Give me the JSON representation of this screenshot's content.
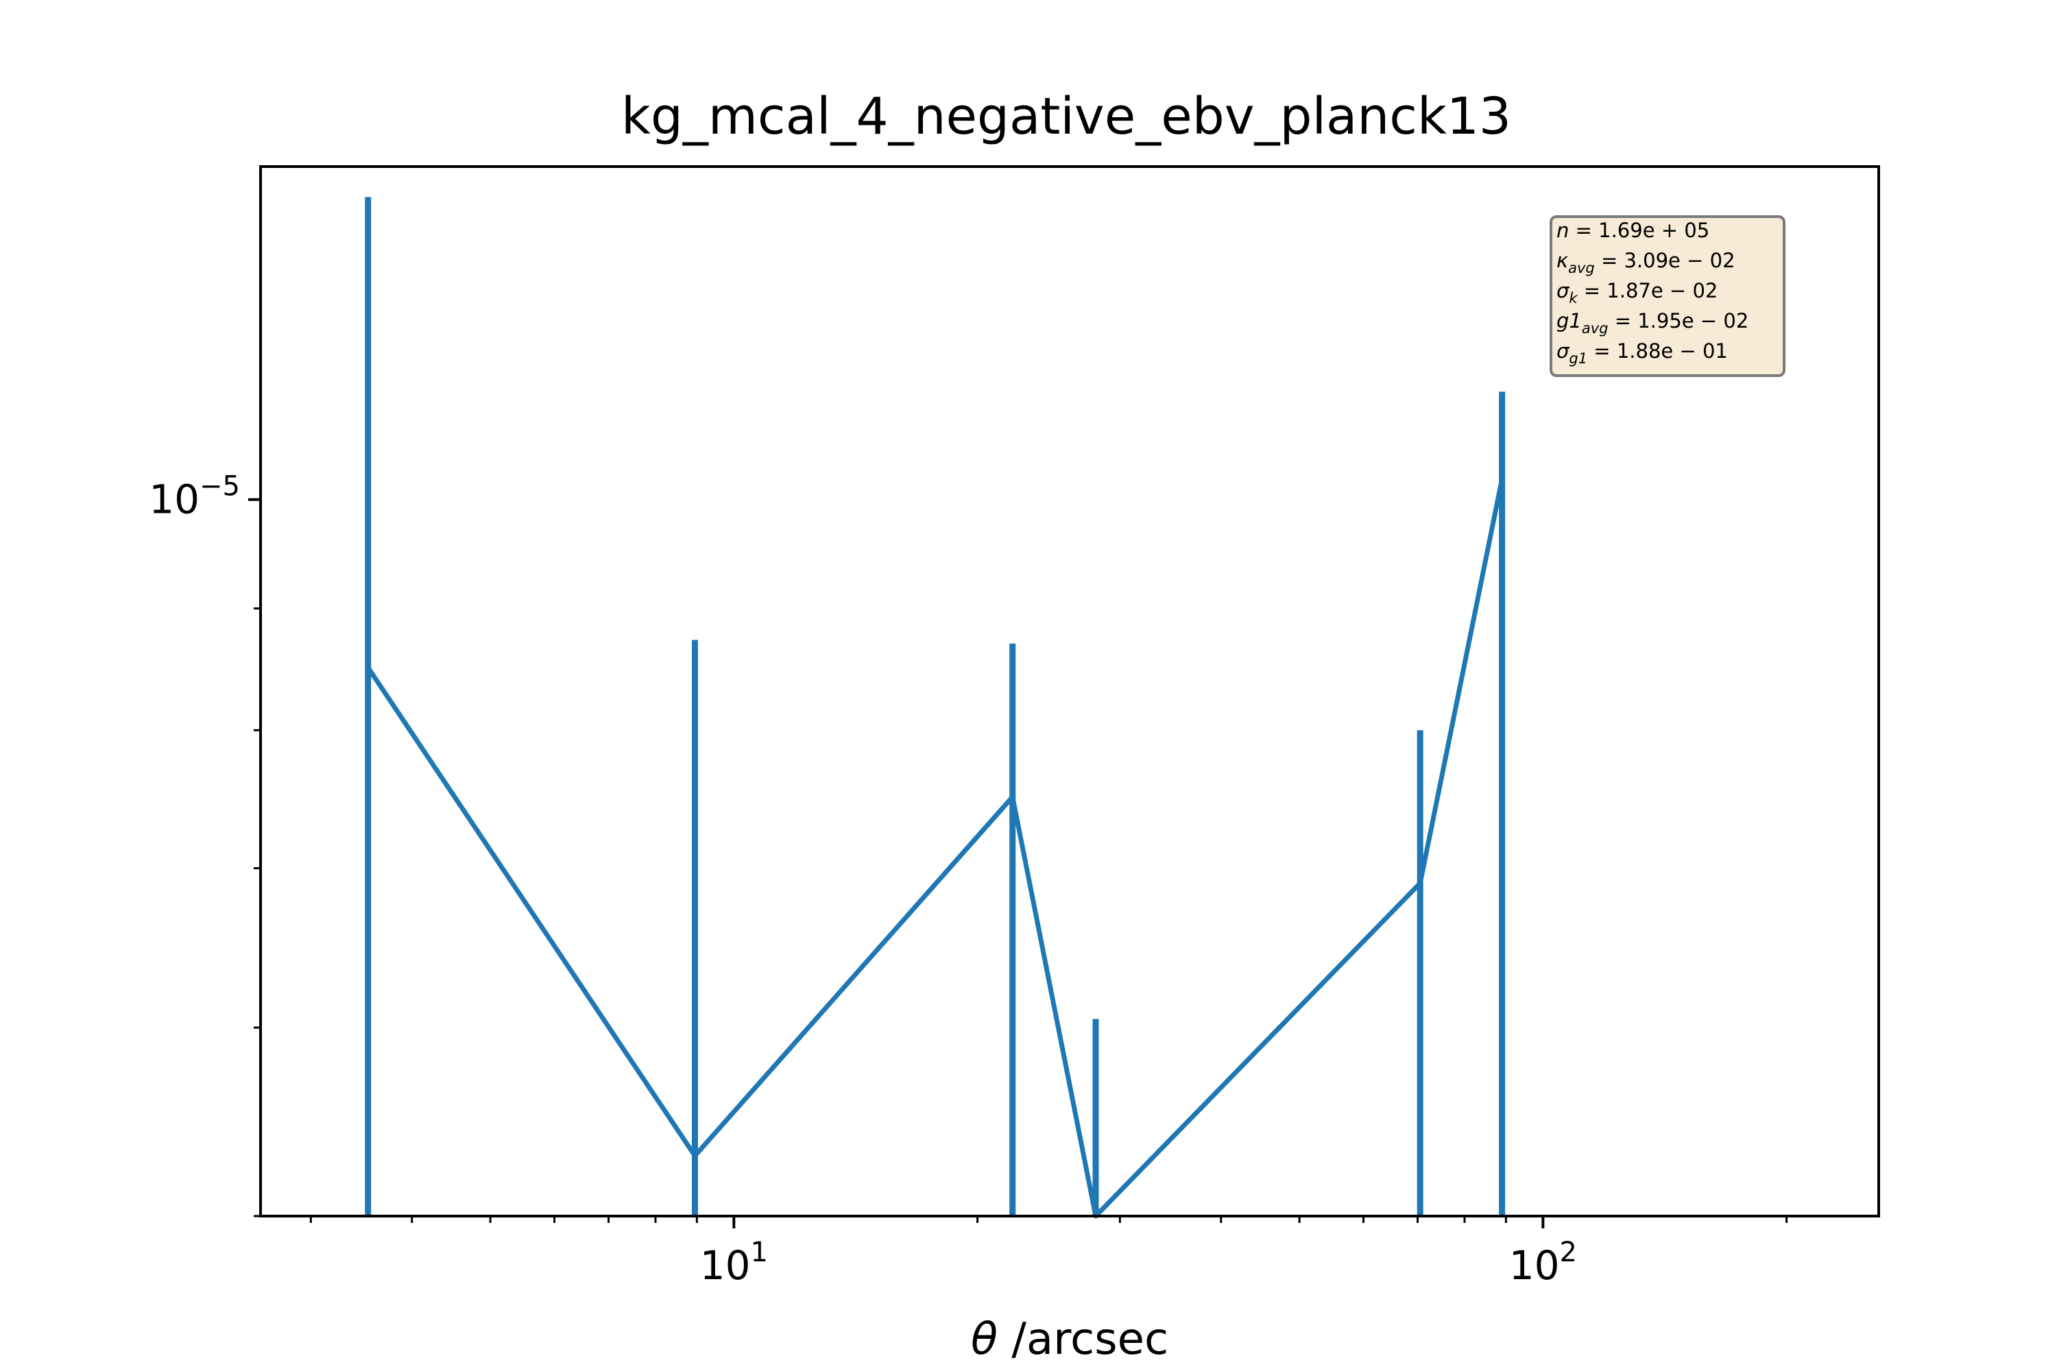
{
  "chart_data": {
    "type": "line",
    "title": "kg_mcal_4_negative_ebv_planck13",
    "xlabel_symbol": "θ",
    "xlabel_rest": " /arcsec",
    "ylabel": "",
    "xscale": "log",
    "yscale": "log",
    "xlim": [
      2.6,
      260
    ],
    "ylim": [
      5e-06,
      1.38e-05
    ],
    "x_ticks": [
      {
        "value": 10,
        "base": "10",
        "exp": "1"
      },
      {
        "value": 100,
        "base": "10",
        "exp": "2"
      }
    ],
    "y_ticks": [
      {
        "value": 1e-05,
        "base": "10",
        "exp": "−5"
      }
    ],
    "grid": false,
    "series": [
      {
        "color": "#1f77b4",
        "points": [
          {
            "x": 3.53,
            "y": 8.5e-06,
            "err_lo": 3.5e-06,
            "err_hi": 4.9e-06
          },
          {
            "x": 8.95,
            "y": 5.3e-06,
            "err_lo": 3e-07,
            "err_hi": 3.43e-06
          },
          {
            "x": 22.1,
            "y": 7.5e-06,
            "err_lo": 2.5e-06,
            "err_hi": 1.2e-06
          },
          {
            "x": 28.0,
            "y": 5e-06,
            "err_lo": 0.0,
            "err_hi": 1.05e-06
          },
          {
            "x": 70.5,
            "y": 6.9e-06,
            "err_lo": 1.9e-06,
            "err_hi": 1.1e-06
          },
          {
            "x": 89.0,
            "y": 1.02e-05,
            "err_lo": 5.2e-06,
            "err_hi": 9e-07
          }
        ]
      }
    ],
    "stats_box": {
      "lines": [
        {
          "sym": "n",
          "sub": "",
          "val": " = 1.69e + 05"
        },
        {
          "sym": "κ",
          "sub": "avg",
          "val": " = 3.09e − 02"
        },
        {
          "sym": "σ",
          "sub": "k",
          "val": " = 1.87e − 02"
        },
        {
          "sym": "g1",
          "sub": "avg",
          "val": " = 1.95e − 02"
        },
        {
          "sym": "σ",
          "sub": "g1",
          "val": " = 1.88e − 01"
        }
      ],
      "background": "#f7ead6",
      "border": "#7a7a7a"
    }
  }
}
